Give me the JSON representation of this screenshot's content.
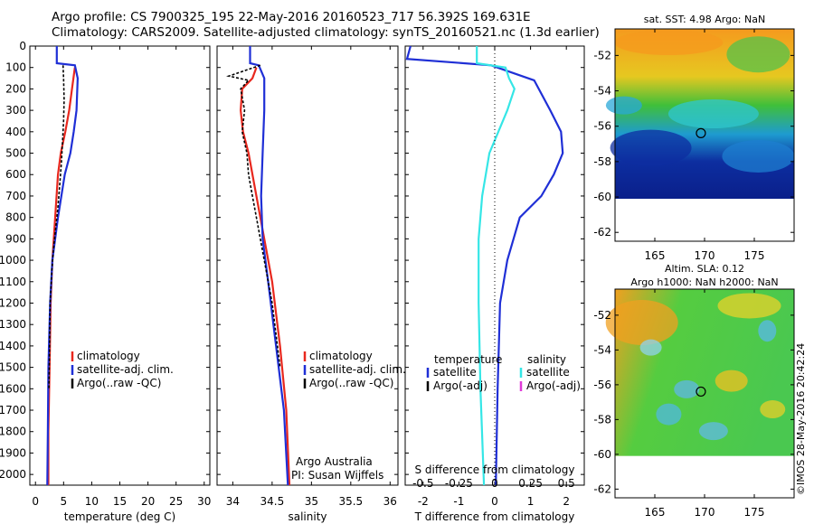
{
  "header": {
    "title_line1": "Argo profile: CS 7900325_195 22-May-2016 20160523_717 56.392S 169.631E",
    "title_line2": "Climatology: CARS2009. Satellite-adjusted climatology: synTS_20160521.nc (1.3d earlier)"
  },
  "colors": {
    "climatology": "#e8281e",
    "satellite": "#1f2fd6",
    "argo": "#000000",
    "s_satellite": "#35e6e6",
    "s_argo": "#e03ad8"
  },
  "chart_data": [
    {
      "id": "temperature",
      "type": "line",
      "xlabel": "temperature (deg C)",
      "ylabel": "",
      "xlim": [
        -1,
        31
      ],
      "xticks": [
        0,
        5,
        10,
        15,
        20,
        25,
        30
      ],
      "ylim": [
        2050,
        0
      ],
      "yticks": [
        0,
        100,
        200,
        300,
        400,
        500,
        600,
        700,
        800,
        900,
        1000,
        1100,
        1200,
        1300,
        1400,
        1500,
        1600,
        1700,
        1800,
        1900,
        2000
      ],
      "legend": [
        "climatology",
        "satellite-adj. clim.",
        "Argo(..raw -QC)"
      ],
      "legend_position": "middle-right",
      "series": [
        {
          "name": "climatology",
          "color_key": "climatology",
          "x": [
            7.0,
            6.5,
            6.0,
            5.3,
            4.5,
            4.0,
            3.5,
            3.0,
            2.7,
            2.5,
            2.3,
            2.3
          ],
          "y": [
            100,
            200,
            300,
            400,
            500,
            600,
            800,
            1000,
            1200,
            1500,
            1800,
            2050
          ]
        },
        {
          "name": "satellite-adj. clim.",
          "color_key": "satellite",
          "x": [
            3.8,
            3.8,
            7.0,
            7.5,
            7.3,
            6.8,
            6.2,
            5.2,
            4.0,
            3.0,
            2.6,
            2.3,
            2.2,
            2.1
          ],
          "y": [
            0,
            80,
            90,
            150,
            300,
            400,
            500,
            600,
            800,
            1000,
            1200,
            1500,
            1800,
            2050
          ]
        },
        {
          "name": "Argo(..raw -QC)",
          "color_key": "argo",
          "x": [
            4.9,
            5.0,
            5.1,
            5.0,
            4.8,
            4.6,
            4.3,
            4.0,
            3.6,
            3.2,
            2.9,
            2.6,
            2.5,
            2.4
          ],
          "y": [
            90,
            150,
            250,
            350,
            450,
            550,
            650,
            750,
            850,
            950,
            1050,
            1200,
            1400,
            1600
          ]
        }
      ]
    },
    {
      "id": "salinity",
      "type": "line",
      "xlabel": "salinity",
      "ylabel": "",
      "xlim": [
        33.8,
        36.1
      ],
      "xticks": [
        34,
        34.5,
        35,
        35.5,
        36
      ],
      "xtick_labels": [
        "34",
        "34.5",
        "35",
        "35.5",
        "36"
      ],
      "ylim": [
        2050,
        0
      ],
      "legend": [
        "climatology",
        "satellite-adj. clim.",
        "Argo(..raw -QC)"
      ],
      "legend_position": "middle-right",
      "annotation": [
        "Argo Australia",
        "PI: Susan Wijffels"
      ],
      "series": [
        {
          "name": "climatology",
          "color_key": "climatology",
          "x": [
            34.3,
            34.25,
            34.12,
            34.1,
            34.13,
            34.2,
            34.3,
            34.4,
            34.5,
            34.6,
            34.68,
            34.72
          ],
          "y": [
            100,
            150,
            200,
            300,
            400,
            500,
            700,
            900,
            1100,
            1400,
            1700,
            2050
          ]
        },
        {
          "name": "satellite-adj. clim.",
          "color_key": "satellite",
          "x": [
            34.22,
            34.22,
            34.33,
            34.4,
            34.4,
            34.38,
            34.36,
            34.38,
            34.45,
            34.55,
            34.65,
            34.7
          ],
          "y": [
            0,
            80,
            90,
            150,
            300,
            500,
            700,
            900,
            1100,
            1400,
            1700,
            2050
          ]
        },
        {
          "name": "Argo(..raw -QC)",
          "color_key": "argo",
          "x": [
            34.35,
            33.95,
            34.2,
            34.1,
            34.15,
            34.12,
            34.18,
            34.2,
            34.25,
            34.3,
            34.4,
            34.5,
            34.6
          ],
          "y": [
            90,
            140,
            160,
            200,
            300,
            400,
            500,
            600,
            700,
            800,
            1000,
            1200,
            1500
          ]
        }
      ]
    },
    {
      "id": "difference",
      "type": "line",
      "xlabel": "T difference from climatology",
      "xlabel_top": "S difference from climatology",
      "xlim": [
        -2.5,
        2.5
      ],
      "xticks": [
        -2,
        -1,
        0,
        1,
        2
      ],
      "xticks_s": [
        -0.5,
        -0.25,
        0,
        0.25,
        0.5
      ],
      "ylim": [
        2050,
        0
      ],
      "legend": [
        "temperature",
        "satellite",
        "Argo(-adj)",
        "salinity",
        "satellite",
        "Argo(-adj)"
      ],
      "legend_position": "bottom",
      "series": [
        {
          "name": "satellite",
          "group": "temperature",
          "color_key": "satellite",
          "x": [
            -2.35,
            -2.45,
            -0.1,
            1.1,
            1.55,
            1.85,
            1.9,
            1.65,
            1.3,
            0.7,
            0.35,
            0.15,
            0.08,
            0.03
          ],
          "y": [
            0,
            60,
            90,
            160,
            300,
            400,
            500,
            600,
            700,
            800,
            1000,
            1200,
            1600,
            2050
          ]
        },
        {
          "name": "satellite",
          "group": "salinity",
          "color_key": "s_satellite",
          "x": [
            -0.5,
            -0.5,
            0.3,
            0.4,
            0.55,
            0.35,
            0.1,
            -0.15,
            -0.35,
            -0.45,
            -0.45,
            -0.4,
            -0.3
          ],
          "y": [
            0,
            80,
            100,
            150,
            200,
            300,
            400,
            500,
            700,
            900,
            1200,
            1600,
            2050
          ]
        }
      ]
    },
    {
      "id": "sst-map",
      "type": "heatmap",
      "title": "sat. SST: 4.98 Argo: NaN",
      "xticks": [
        165,
        170,
        175
      ],
      "yticks": [
        -52,
        -54,
        -56,
        -58,
        -60,
        -62
      ],
      "xlim": [
        161,
        179
      ],
      "ylim": [
        -62.5,
        -50.5
      ],
      "marker": {
        "lon": 169.631,
        "lat": -56.392
      }
    },
    {
      "id": "sla-map",
      "type": "heatmap",
      "title_line1": "Altim. SLA: 0.12",
      "title_line2": "Argo h1000: NaN h2000: NaN",
      "xticks": [
        165,
        170,
        175
      ],
      "yticks": [
        -52,
        -54,
        -56,
        -58,
        -60,
        -62
      ],
      "xlim": [
        161,
        179
      ],
      "ylim": [
        -62.5,
        -50.5
      ],
      "marker": {
        "lon": 169.631,
        "lat": -56.392
      },
      "side_note": "©IMOS 28-May-2016 20:42:24"
    }
  ]
}
